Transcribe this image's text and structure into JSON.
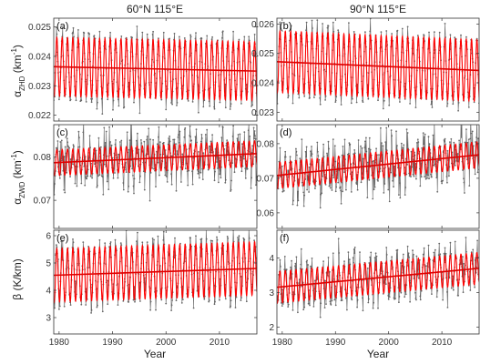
{
  "figure": {
    "col_titles": [
      "60°N 115°E",
      "90°N 115°E"
    ],
    "row_labels": [
      {
        "main": "α",
        "sub": "ZHD",
        "tail": " (km",
        "sup": "-1",
        "close": ")"
      },
      {
        "main": "α",
        "sub": "ZWD",
        "tail": " (km",
        "sup": "-1",
        "close": ")"
      },
      {
        "main": "β (K/km)",
        "sub": "",
        "tail": "",
        "sup": "",
        "close": ""
      }
    ],
    "xlabel": "Year"
  },
  "colors": {
    "observed": "#666666",
    "model": "#ff0000",
    "trend": "#e00000",
    "axes": "#333333"
  },
  "chart_data": [
    {
      "panel": "(a)",
      "type": "line",
      "row": 0,
      "col": 0,
      "xlim": [
        1979,
        2017
      ],
      "ylim": [
        0.0218,
        0.0253
      ],
      "yticks": [
        0.022,
        0.023,
        0.024,
        0.025
      ],
      "ytick_labels": [
        "0.022",
        "0.023",
        "0.024",
        "0.025"
      ],
      "xticks": [
        1980,
        1990,
        2000,
        2010
      ],
      "xtick_labels": [],
      "series": [
        {
          "role": "observed",
          "mean_start": 0.02365,
          "mean_end": 0.0235,
          "amplitude": 0.00105,
          "noise": 0.00028
        },
        {
          "role": "model",
          "mean_start": 0.02365,
          "mean_end": 0.0235,
          "amplitude": 0.001
        },
        {
          "role": "trend",
          "x": [
            1979,
            2017
          ],
          "y": [
            0.02365,
            0.0235
          ]
        }
      ]
    },
    {
      "panel": "(b)",
      "type": "line",
      "row": 0,
      "col": 1,
      "xlim": [
        1979,
        2017
      ],
      "ylim": [
        0.0227,
        0.0262
      ],
      "yticks": [
        0.023,
        0.024,
        0.025,
        0.026
      ],
      "ytick_labels": [
        "0.023",
        "0.024",
        "0.025",
        "0.026"
      ],
      "xticks": [
        1980,
        1990,
        2000,
        2010
      ],
      "xtick_labels": [],
      "series": [
        {
          "role": "observed",
          "mean_start": 0.02472,
          "mean_end": 0.02442,
          "amplitude": 0.0011,
          "noise": 0.00025
        },
        {
          "role": "model",
          "mean_start": 0.02472,
          "mean_end": 0.02442,
          "amplitude": 0.00105
        },
        {
          "role": "trend",
          "x": [
            1979,
            2017
          ],
          "y": [
            0.02472,
            0.02442
          ]
        }
      ]
    },
    {
      "panel": "(c)",
      "type": "line",
      "row": 1,
      "col": 0,
      "xlim": [
        1979,
        2017
      ],
      "ylim": [
        0.0635,
        0.0875
      ],
      "yticks": [
        0.07,
        0.08
      ],
      "ytick_labels": [
        "0.07",
        "0.08"
      ],
      "xticks": [
        1980,
        1990,
        2000,
        2010
      ],
      "xtick_labels": [],
      "series": [
        {
          "role": "observed",
          "mean_start": 0.0787,
          "mean_end": 0.0808,
          "amplitude": 0.0028,
          "noise": 0.0035
        },
        {
          "role": "model",
          "mean_start": 0.0787,
          "mean_end": 0.0808,
          "amplitude": 0.003
        },
        {
          "role": "trend",
          "x": [
            1979,
            2017
          ],
          "y": [
            0.0787,
            0.0808
          ]
        }
      ]
    },
    {
      "panel": "(d)",
      "type": "line",
      "row": 1,
      "col": 1,
      "xlim": [
        1979,
        2017
      ],
      "ylim": [
        0.0555,
        0.0855
      ],
      "yticks": [
        0.06,
        0.07,
        0.08
      ],
      "ytick_labels": [
        "0.06",
        "0.07",
        "0.08"
      ],
      "xticks": [
        1980,
        1990,
        2000,
        2010
      ],
      "xtick_labels": [],
      "series": [
        {
          "role": "observed",
          "mean_start": 0.0708,
          "mean_end": 0.0768,
          "amplitude": 0.004,
          "noise": 0.0042
        },
        {
          "role": "model",
          "mean_start": 0.0708,
          "mean_end": 0.0768,
          "amplitude": 0.0038
        },
        {
          "role": "trend",
          "x": [
            1979,
            2017
          ],
          "y": [
            0.0708,
            0.0768
          ]
        }
      ]
    },
    {
      "panel": "(e)",
      "type": "line",
      "row": 2,
      "col": 0,
      "xlim": [
        1979,
        2017
      ],
      "ylim": [
        2.4,
        6.2
      ],
      "yticks": [
        3,
        4,
        5,
        6
      ],
      "ytick_labels": [
        "3",
        "4",
        "5",
        "6"
      ],
      "xticks": [
        1980,
        1990,
        2000,
        2010
      ],
      "xtick_labels": [
        "1980",
        "1990",
        "2000",
        "2010"
      ],
      "series": [
        {
          "role": "observed",
          "mean_start": 4.55,
          "mean_end": 4.8,
          "amplitude": 1.0,
          "noise": 0.35
        },
        {
          "role": "model",
          "mean_start": 4.55,
          "mean_end": 4.8,
          "amplitude": 0.98
        },
        {
          "role": "trend",
          "x": [
            1979,
            2017
          ],
          "y": [
            4.55,
            4.8
          ]
        }
      ]
    },
    {
      "panel": "(f)",
      "type": "line",
      "row": 2,
      "col": 1,
      "xlim": [
        1979,
        2017
      ],
      "ylim": [
        1.8,
        4.8
      ],
      "yticks": [
        2,
        3,
        4
      ],
      "ytick_labels": [
        "2",
        "3",
        "4"
      ],
      "xticks": [
        1980,
        1990,
        2000,
        2010
      ],
      "xtick_labels": [
        "1980",
        "1990",
        "2000",
        "2010"
      ],
      "series": [
        {
          "role": "observed",
          "mean_start": 3.15,
          "mean_end": 3.7,
          "amplitude": 0.48,
          "noise": 0.35
        },
        {
          "role": "model",
          "mean_start": 3.15,
          "mean_end": 3.7,
          "amplitude": 0.46
        },
        {
          "role": "trend",
          "x": [
            1979,
            2017
          ],
          "y": [
            3.15,
            3.7
          ]
        }
      ]
    }
  ]
}
